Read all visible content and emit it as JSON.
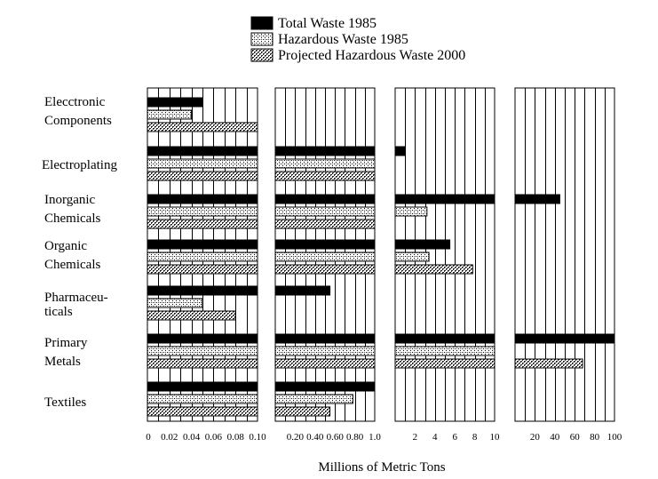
{
  "chart_data": {
    "type": "bar",
    "orientation": "horizontal",
    "xlabel": "Millions of Metric Tons",
    "legend": {
      "placement": "top-center",
      "entries": [
        {
          "name": "Total Waste 1985",
          "pattern": "solid-black"
        },
        {
          "name": "Hazardous Waste 1985",
          "pattern": "fine-dots"
        },
        {
          "name": "Projected Hazardous Waste 2000",
          "pattern": "crosshatch"
        }
      ]
    },
    "categories": [
      {
        "lines": [
          "Elecctronic",
          "Components"
        ]
      },
      {
        "lines": [
          "Electroplating"
        ]
      },
      {
        "lines": [
          "Inorganic",
          "Chemicals"
        ]
      },
      {
        "lines": [
          "Organic",
          "Chemicals"
        ]
      },
      {
        "lines": [
          "Pharmaceu-",
          "ticals"
        ]
      },
      {
        "lines": [
          "Primary",
          "Metals"
        ]
      },
      {
        "lines": [
          "Textiles"
        ]
      }
    ],
    "panels": [
      {
        "xlim": [
          0,
          0.1
        ],
        "gridlines": [
          0.01,
          0.02,
          0.03,
          0.04,
          0.05,
          0.06,
          0.07,
          0.08,
          0.09
        ],
        "ticks": [
          {
            "v": 0,
            "label": "0"
          },
          {
            "v": 0.02,
            "label": "0.02"
          },
          {
            "v": 0.04,
            "label": "0.04"
          },
          {
            "v": 0.06,
            "label": "0.06"
          },
          {
            "v": 0.08,
            "label": "0.08"
          },
          {
            "v": 0.1,
            "label": "0.10"
          }
        ],
        "series": [
          {
            "name": "Total Waste 1985",
            "values": [
              0.05,
              0.1,
              0.1,
              0.1,
              0.1,
              0.1,
              0.1
            ]
          },
          {
            "name": "Hazardous Waste 1985",
            "values": [
              0.04,
              0.1,
              0.1,
              0.1,
              0.05,
              0.1,
              0.1
            ]
          },
          {
            "name": "Projected Hazardous Waste 2000",
            "values": [
              0.1,
              0.1,
              0.1,
              0.1,
              0.08,
              0.1,
              0.1
            ]
          }
        ]
      },
      {
        "xlim": [
          0,
          1.0
        ],
        "gridlines": [
          0.1,
          0.2,
          0.3,
          0.4,
          0.5,
          0.6,
          0.7,
          0.8,
          0.9
        ],
        "ticks": [
          {
            "v": 0.2,
            "label": "0.20"
          },
          {
            "v": 0.4,
            "label": "0.40"
          },
          {
            "v": 0.6,
            "label": "0.60"
          },
          {
            "v": 0.8,
            "label": "0.80"
          },
          {
            "v": 1.0,
            "label": "1.0"
          }
        ],
        "series": [
          {
            "name": "Total Waste 1985",
            "values": [
              null,
              1.0,
              1.0,
              1.0,
              0.55,
              1.0,
              1.0
            ]
          },
          {
            "name": "Hazardous Waste 1985",
            "values": [
              null,
              1.0,
              1.0,
              1.0,
              null,
              1.0,
              0.78
            ]
          },
          {
            "name": "Projected Hazardous Waste 2000",
            "values": [
              null,
              1.0,
              1.0,
              1.0,
              null,
              1.0,
              0.55
            ]
          }
        ]
      },
      {
        "xlim": [
          0,
          10
        ],
        "gridlines": [
          1,
          2,
          3,
          4,
          5,
          6,
          7,
          8,
          9
        ],
        "ticks": [
          {
            "v": 2,
            "label": "2"
          },
          {
            "v": 4,
            "label": "4"
          },
          {
            "v": 6,
            "label": "6"
          },
          {
            "v": 8,
            "label": "8"
          },
          {
            "v": 10,
            "label": "10"
          }
        ],
        "series": [
          {
            "name": "Total Waste 1985",
            "values": [
              null,
              1.0,
              10,
              5.5,
              null,
              10,
              null
            ]
          },
          {
            "name": "Hazardous Waste 1985",
            "values": [
              null,
              null,
              3.2,
              3.4,
              null,
              10,
              null
            ]
          },
          {
            "name": "Projected Hazardous Waste 2000",
            "values": [
              null,
              null,
              null,
              7.8,
              null,
              10,
              null
            ]
          }
        ]
      },
      {
        "xlim": [
          0,
          100
        ],
        "gridlines": [
          10,
          20,
          30,
          40,
          50,
          60,
          70,
          80,
          90
        ],
        "ticks": [
          {
            "v": 20,
            "label": "20"
          },
          {
            "v": 40,
            "label": "40"
          },
          {
            "v": 60,
            "label": "60"
          },
          {
            "v": 80,
            "label": "80"
          },
          {
            "v": 100,
            "label": "100"
          }
        ],
        "series": [
          {
            "name": "Total Waste 1985",
            "values": [
              null,
              null,
              45,
              null,
              null,
              100,
              null
            ]
          },
          {
            "name": "Hazardous Waste 1985",
            "values": [
              null,
              null,
              null,
              null,
              null,
              null,
              null
            ]
          },
          {
            "name": "Projected Hazardous Waste 2000",
            "values": [
              null,
              null,
              null,
              null,
              null,
              68,
              null
            ]
          }
        ]
      }
    ]
  }
}
